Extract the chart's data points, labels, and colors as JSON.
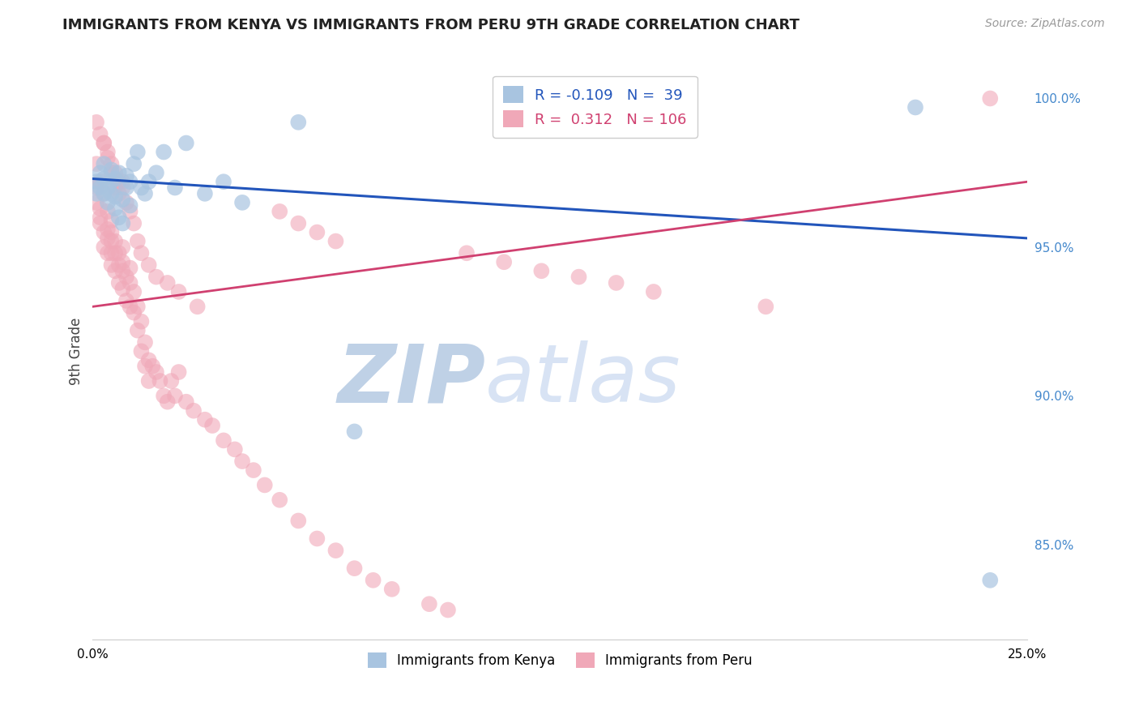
{
  "title": "IMMIGRANTS FROM KENYA VS IMMIGRANTS FROM PERU 9TH GRADE CORRELATION CHART",
  "source": "Source: ZipAtlas.com",
  "ylabel": "9th Grade",
  "x_min": 0.0,
  "x_max": 0.25,
  "y_min": 0.818,
  "y_max": 1.012,
  "y_ticks": [
    0.85,
    0.9,
    0.95,
    1.0
  ],
  "y_tick_labels": [
    "85.0%",
    "90.0%",
    "95.0%",
    "100.0%"
  ],
  "kenya_color": "#a8c4e0",
  "peru_color": "#f0a8b8",
  "kenya_line_color": "#2255bb",
  "peru_line_color": "#d04070",
  "kenya_scatter_x": [
    0.001,
    0.001,
    0.002,
    0.002,
    0.003,
    0.003,
    0.003,
    0.004,
    0.004,
    0.005,
    0.005,
    0.005,
    0.006,
    0.006,
    0.006,
    0.007,
    0.007,
    0.008,
    0.008,
    0.009,
    0.009,
    0.01,
    0.01,
    0.011,
    0.012,
    0.013,
    0.014,
    0.015,
    0.017,
    0.019,
    0.022,
    0.025,
    0.03,
    0.035,
    0.04,
    0.055,
    0.07,
    0.22,
    0.24
  ],
  "kenya_scatter_y": [
    0.972,
    0.968,
    0.975,
    0.97,
    0.968,
    0.973,
    0.978,
    0.97,
    0.965,
    0.968,
    0.972,
    0.976,
    0.963,
    0.967,
    0.973,
    0.96,
    0.975,
    0.958,
    0.966,
    0.974,
    0.97,
    0.972,
    0.964,
    0.978,
    0.982,
    0.97,
    0.968,
    0.972,
    0.975,
    0.982,
    0.97,
    0.985,
    0.968,
    0.972,
    0.965,
    0.992,
    0.888,
    0.997,
    0.838
  ],
  "peru_scatter_x": [
    0.001,
    0.001,
    0.001,
    0.002,
    0.002,
    0.002,
    0.002,
    0.003,
    0.003,
    0.003,
    0.004,
    0.004,
    0.004,
    0.004,
    0.005,
    0.005,
    0.005,
    0.005,
    0.005,
    0.006,
    0.006,
    0.006,
    0.007,
    0.007,
    0.007,
    0.008,
    0.008,
    0.008,
    0.008,
    0.009,
    0.009,
    0.01,
    0.01,
    0.01,
    0.011,
    0.011,
    0.012,
    0.012,
    0.013,
    0.013,
    0.014,
    0.014,
    0.015,
    0.015,
    0.016,
    0.017,
    0.018,
    0.019,
    0.02,
    0.021,
    0.022,
    0.023,
    0.025,
    0.027,
    0.03,
    0.032,
    0.035,
    0.038,
    0.04,
    0.043,
    0.046,
    0.05,
    0.055,
    0.06,
    0.065,
    0.07,
    0.075,
    0.08,
    0.09,
    0.095,
    0.003,
    0.004,
    0.005,
    0.006,
    0.007,
    0.008,
    0.009,
    0.01,
    0.011,
    0.012,
    0.013,
    0.015,
    0.017,
    0.02,
    0.023,
    0.028,
    0.001,
    0.002,
    0.003,
    0.004,
    0.005,
    0.006,
    0.007,
    0.008,
    0.05,
    0.055,
    0.06,
    0.065,
    0.1,
    0.11,
    0.12,
    0.13,
    0.14,
    0.15,
    0.18,
    0.24
  ],
  "peru_scatter_y": [
    0.978,
    0.97,
    0.965,
    0.972,
    0.96,
    0.958,
    0.963,
    0.968,
    0.955,
    0.95,
    0.953,
    0.948,
    0.956,
    0.962,
    0.948,
    0.955,
    0.959,
    0.952,
    0.944,
    0.948,
    0.942,
    0.952,
    0.944,
    0.938,
    0.948,
    0.942,
    0.936,
    0.945,
    0.95,
    0.932,
    0.94,
    0.938,
    0.943,
    0.93,
    0.935,
    0.928,
    0.93,
    0.922,
    0.925,
    0.915,
    0.918,
    0.91,
    0.912,
    0.905,
    0.91,
    0.908,
    0.905,
    0.9,
    0.898,
    0.905,
    0.9,
    0.908,
    0.898,
    0.895,
    0.892,
    0.89,
    0.885,
    0.882,
    0.878,
    0.875,
    0.87,
    0.865,
    0.858,
    0.852,
    0.848,
    0.842,
    0.838,
    0.835,
    0.83,
    0.828,
    0.985,
    0.98,
    0.975,
    0.97,
    0.968,
    0.972,
    0.965,
    0.962,
    0.958,
    0.952,
    0.948,
    0.944,
    0.94,
    0.938,
    0.935,
    0.93,
    0.992,
    0.988,
    0.985,
    0.982,
    0.978,
    0.975,
    0.972,
    0.97,
    0.962,
    0.958,
    0.955,
    0.952,
    0.948,
    0.945,
    0.942,
    0.94,
    0.938,
    0.935,
    0.93,
    1.0
  ],
  "kenya_trend_x": [
    0.0,
    0.25
  ],
  "kenya_trend_y": [
    0.973,
    0.953
  ],
  "peru_trend_x": [
    0.0,
    0.25
  ],
  "peru_trend_y": [
    0.93,
    0.972
  ],
  "watermark_zip": "ZIP",
  "watermark_atlas": "atlas",
  "watermark_color": "#c8d8f0",
  "background_color": "#ffffff",
  "grid_color": "#dddddd",
  "legend1_kenya": "R = -0.109   N =  39",
  "legend1_peru": "R =  0.312   N = 106",
  "legend2_kenya": "Immigrants from Kenya",
  "legend2_peru": "Immigrants from Peru"
}
